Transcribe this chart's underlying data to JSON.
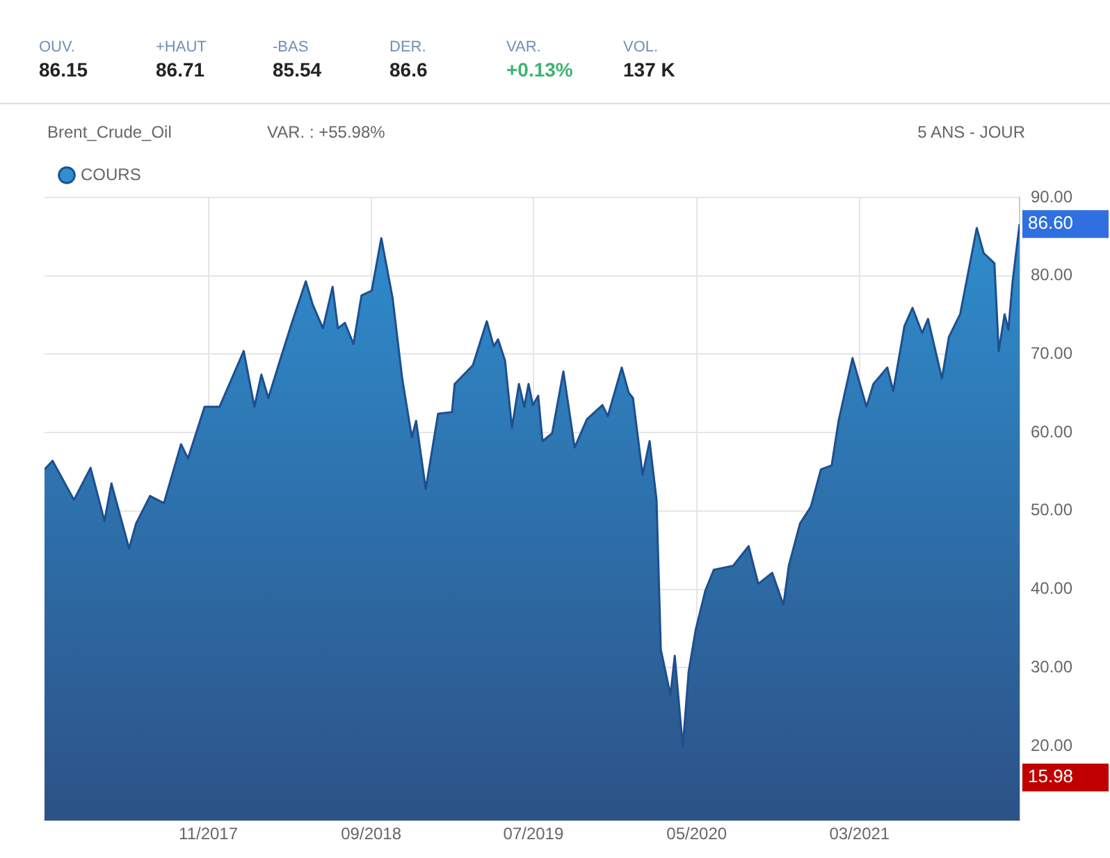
{
  "chart_data": {
    "type": "area",
    "title": "Brent_Crude_Oil",
    "subtitle": "VAR. : +55.98%",
    "annotations": [
      "OUV.",
      "86.15",
      "+HAUT",
      "86.71",
      "-BAS",
      "85.54",
      "DER.",
      "86.6",
      "VAR.",
      "+0.13%",
      "VOL.",
      "137 K",
      "5 ANS - JOUR",
      "86.60",
      "15.98"
    ],
    "xlim": [
      "2016-12-30",
      "2021-12-25"
    ],
    "xticks": [
      {
        "value": "2017-11-01",
        "label": "11/2017"
      },
      {
        "value": "2018-09-01",
        "label": "09/2018"
      },
      {
        "value": "2019-07-01",
        "label": "07/2019"
      },
      {
        "value": "2020-05-01",
        "label": "05/2020"
      },
      {
        "value": "2021-03-01",
        "label": "03/2021"
      }
    ],
    "ylim": [
      10.5,
      90
    ],
    "yticks": [
      {
        "value": 20,
        "label": "20.00"
      },
      {
        "value": 30,
        "label": "30.00"
      },
      {
        "value": 40,
        "label": "40.00"
      },
      {
        "value": 50,
        "label": "50.00"
      },
      {
        "value": 60,
        "label": "60.00"
      },
      {
        "value": 70,
        "label": "70.00"
      },
      {
        "value": 80,
        "label": "80.00"
      },
      {
        "value": 90,
        "label": "90.00"
      }
    ],
    "grid": true,
    "legend": "top left",
    "marker": "none",
    "series": [
      {
        "name": "COURS",
        "color": "#2f8fd0",
        "x": [
          "2016-12-30",
          "2017-01-14",
          "2017-02-23",
          "2017-03-26",
          "2017-04-21",
          "2017-05-04",
          "2017-06-06",
          "2017-06-19",
          "2017-07-15",
          "2017-08-10",
          "2017-09-11",
          "2017-09-24",
          "2017-10-25",
          "2017-11-22",
          "2018-01-06",
          "2018-01-26",
          "2018-02-08",
          "2018-02-21",
          "2018-03-17",
          "2018-04-06",
          "2018-05-02",
          "2018-05-15",
          "2018-06-03",
          "2018-06-21",
          "2018-07-01",
          "2018-07-14",
          "2018-07-30",
          "2018-08-14",
          "2018-09-02",
          "2018-09-20",
          "2018-10-11",
          "2018-10-29",
          "2018-11-16",
          "2018-11-24",
          "2018-12-12",
          "2019-01-04",
          "2019-01-30",
          "2019-02-04",
          "2019-03-10",
          "2019-04-05",
          "2019-04-18",
          "2019-04-26",
          "2019-05-09",
          "2019-05-22",
          "2019-06-04",
          "2019-06-14",
          "2019-06-22",
          "2019-06-30",
          "2019-07-10",
          "2019-07-18",
          "2019-08-05",
          "2019-08-26",
          "2019-09-16",
          "2019-10-09",
          "2019-11-07",
          "2019-11-17",
          "2019-12-13",
          "2019-12-26",
          "2020-01-03",
          "2020-01-21",
          "2020-02-03",
          "2020-02-16",
          "2020-02-24",
          "2020-03-13",
          "2020-03-21",
          "2020-04-05",
          "2020-04-16",
          "2020-04-29",
          "2020-05-17",
          "2020-06-02",
          "2020-07-08",
          "2020-08-06",
          "2020-08-24",
          "2020-09-19",
          "2020-10-10",
          "2020-10-20",
          "2020-11-10",
          "2020-11-30",
          "2020-12-19",
          "2021-01-08",
          "2021-01-21",
          "2021-02-16",
          "2021-03-14",
          "2021-03-27",
          "2021-04-22",
          "2021-05-03",
          "2021-05-24",
          "2021-06-08",
          "2021-06-26",
          "2021-07-07",
          "2021-08-02",
          "2021-08-15",
          "2021-09-05",
          "2021-10-06",
          "2021-10-19",
          "2021-11-08",
          "2021-11-16",
          "2021-11-27",
          "2021-12-04",
          "2021-12-12",
          "2021-12-25"
        ],
        "values": [
          55.3,
          56.4,
          51.4,
          55.5,
          48.7,
          53.5,
          45.2,
          48.4,
          51.9,
          51.0,
          58.5,
          56.7,
          63.3,
          63.3,
          70.4,
          63.3,
          67.4,
          64.4,
          69.7,
          74.0,
          79.3,
          76.3,
          73.3,
          78.6,
          73.3,
          74.0,
          71.3,
          77.5,
          78.1,
          84.8,
          77.2,
          66.9,
          59.4,
          61.5,
          52.8,
          62.4,
          62.6,
          66.2,
          68.6,
          74.2,
          71.0,
          71.9,
          69.2,
          60.6,
          66.2,
          63.3,
          66.2,
          63.5,
          64.7,
          58.9,
          59.9,
          67.8,
          58.1,
          61.7,
          63.5,
          62.1,
          68.3,
          65.1,
          64.4,
          54.6,
          58.9,
          51.4,
          32.3,
          26.5,
          31.5,
          19.9,
          29.5,
          34.8,
          39.8,
          42.5,
          43.0,
          45.5,
          40.7,
          42.1,
          38.0,
          43.0,
          48.4,
          50.5,
          55.3,
          55.8,
          61.5,
          69.5,
          63.3,
          66.2,
          68.3,
          65.3,
          73.6,
          75.9,
          72.7,
          74.5,
          66.9,
          72.2,
          75.1,
          86.1,
          82.9,
          81.6,
          70.4,
          75.1,
          73.1,
          79.3,
          86.6
        ]
      }
    ]
  }
}
